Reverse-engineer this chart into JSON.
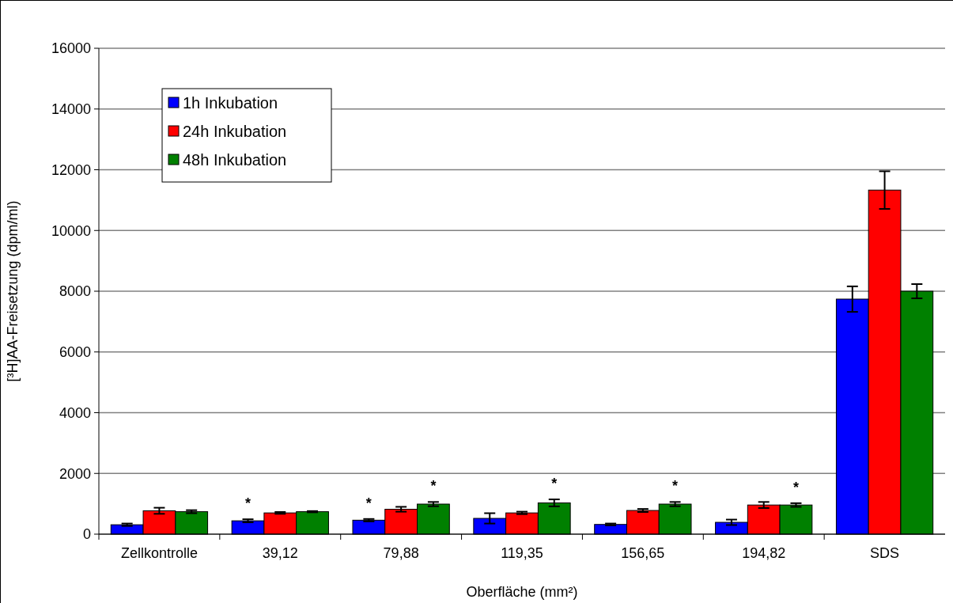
{
  "chart_data": {
    "type": "bar",
    "xlabel": "Oberfläche (mm²)",
    "ylabel": "[³H]AA-Freisetzung (dpm/ml)",
    "categories": [
      "Zellkontrolle",
      "39,12",
      "79,88",
      "119,35",
      "156,65",
      "194,82",
      "SDS"
    ],
    "series": [
      {
        "name": "1h Inkubation",
        "color": "#0000ff",
        "values": [
          310,
          440,
          460,
          520,
          320,
          390,
          7740
        ],
        "errors": [
          40,
          50,
          40,
          170,
          30,
          90,
          420
        ],
        "value_labels": [
          null,
          "*",
          "*",
          null,
          null,
          null,
          null
        ]
      },
      {
        "name": "24h Inkubation",
        "color": "#ff0000",
        "values": [
          770,
          700,
          820,
          700,
          780,
          960,
          11330
        ],
        "errors": [
          100,
          30,
          80,
          40,
          50,
          100,
          620
        ],
        "value_labels": [
          null,
          null,
          null,
          null,
          null,
          null,
          null
        ]
      },
      {
        "name": "48h Inkubation",
        "color": "#008000",
        "values": [
          740,
          740,
          990,
          1030,
          990,
          960,
          8000
        ],
        "errors": [
          50,
          20,
          70,
          115,
          70,
          60,
          235
        ],
        "value_labels": [
          null,
          null,
          "*",
          "*",
          "*",
          "*",
          null
        ]
      }
    ],
    "ylim": [
      0,
      16000
    ],
    "yticks": [
      0,
      2000,
      4000,
      6000,
      8000,
      10000,
      12000,
      14000,
      16000
    ],
    "grid": "y",
    "legend": "top left"
  }
}
